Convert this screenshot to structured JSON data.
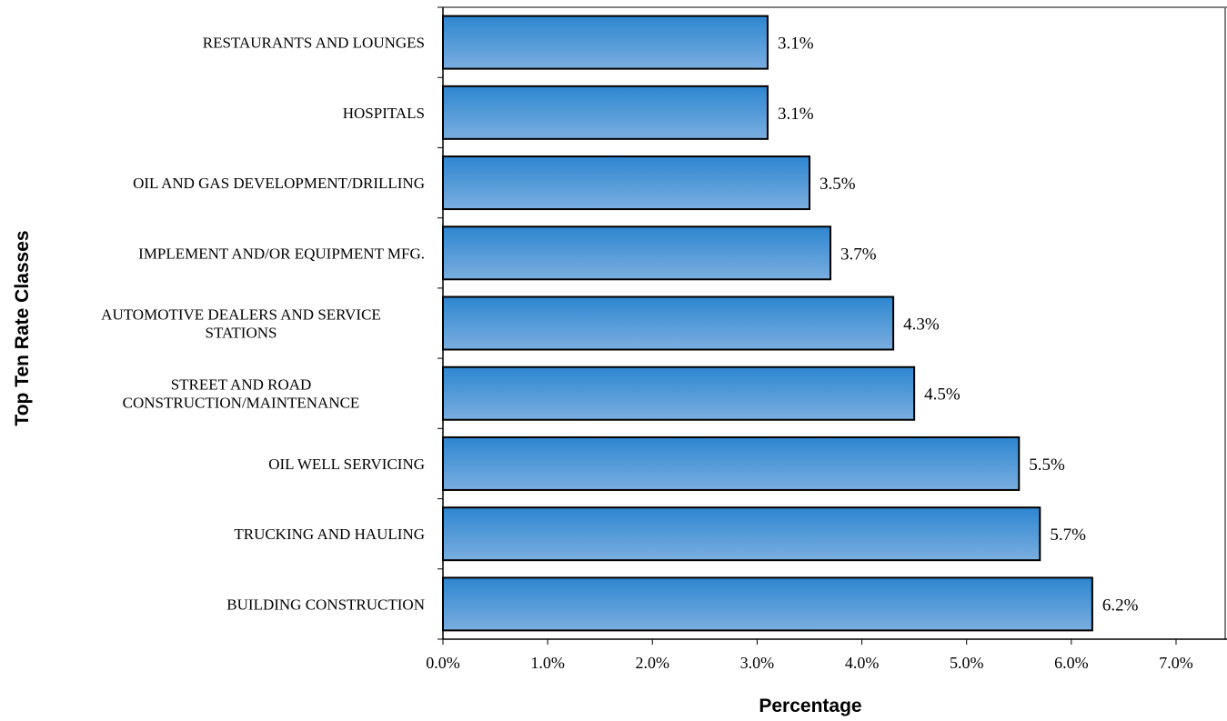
{
  "chart_data": {
    "type": "bar",
    "orientation": "horizontal",
    "xlabel": "Percentage",
    "ylabel": "Top Ten Rate Classes",
    "xlim": [
      0,
      7
    ],
    "xticks": [
      "0.0%",
      "1.0%",
      "2.0%",
      "3.0%",
      "4.0%",
      "5.0%",
      "6.0%",
      "7.0%"
    ],
    "grid": false,
    "bar_color": "#4a90d4",
    "categories": [
      [
        "RESTAURANTS AND LOUNGES"
      ],
      [
        "HOSPITALS"
      ],
      [
        "OIL AND GAS DEVELOPMENT/DRILLING"
      ],
      [
        "IMPLEMENT AND/OR EQUIPMENT MFG."
      ],
      [
        "AUTOMOTIVE DEALERS AND SERVICE",
        "STATIONS"
      ],
      [
        "STREET AND ROAD",
        "CONSTRUCTION/MAINTENANCE"
      ],
      [
        "OIL WELL SERVICING"
      ],
      [
        "TRUCKING AND HAULING"
      ],
      [
        "BUILDING CONSTRUCTION"
      ]
    ],
    "values": [
      3.1,
      3.1,
      3.5,
      3.7,
      4.3,
      4.5,
      5.5,
      5.7,
      6.2
    ],
    "data_labels": [
      "3.1%",
      "3.1%",
      "3.5%",
      "3.7%",
      "4.3%",
      "4.5%",
      "5.5%",
      "5.7%",
      "6.2%"
    ]
  }
}
